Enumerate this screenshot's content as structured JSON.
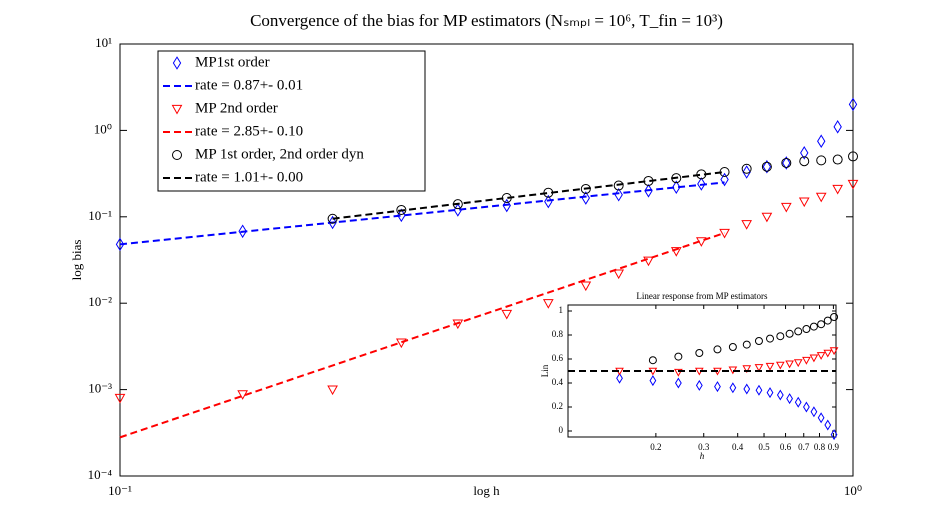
{
  "chart_data": [
    {
      "type": "line",
      "title": "Convergence of the bias for MP estimators (Nₛₘₚₗ = 10⁶, T_fin = 10³)",
      "xlabel": "log h",
      "ylabel": "log bias",
      "xlog": true,
      "ylog": true,
      "xlim": [
        0.1,
        1
      ],
      "ylim": [
        0.0001,
        10
      ],
      "xticks": [
        {
          "value": 0.1,
          "label": "10⁻¹"
        },
        {
          "value": 1,
          "label": "10⁰"
        }
      ],
      "yticks": [
        {
          "value": 0.0001,
          "label": "10⁻⁴"
        },
        {
          "value": 0.001,
          "label": "10⁻³"
        },
        {
          "value": 0.01,
          "label": "10⁻²"
        },
        {
          "value": 0.1,
          "label": "10⁻¹"
        },
        {
          "value": 1,
          "label": "10⁰"
        },
        {
          "value": 10,
          "label": "10¹"
        }
      ],
      "legend": "upper left",
      "x": [
        0.1,
        0.147,
        0.195,
        0.242,
        0.289,
        0.337,
        0.384,
        0.432,
        0.479,
        0.526,
        0.574,
        0.621,
        0.668,
        0.716,
        0.763,
        0.811,
        0.858,
        0.905,
        0.953,
        1.0
      ],
      "series": [
        {
          "name": "MP1st order",
          "color": "#0000ff",
          "marker": "diamond",
          "values": [
            0.048,
            0.068,
            0.086,
            0.104,
            0.12,
            0.135,
            0.15,
            0.165,
            0.18,
            0.2,
            0.22,
            0.24,
            0.27,
            0.33,
            0.38,
            0.42,
            0.55,
            0.75,
            1.1,
            2.0
          ]
        },
        {
          "name": "rate = 0.87+- 0.01",
          "color": "#0000ff",
          "dash": true,
          "x": [
            0.1,
            0.668
          ],
          "values": [
            0.048,
            0.25
          ]
        },
        {
          "name": "MP 2nd order",
          "color": "#ff0000",
          "marker": "triangle",
          "values": [
            0.0008,
            0.00088,
            0.001,
            0.0035,
            0.0058,
            0.0075,
            0.01,
            0.016,
            0.022,
            0.031,
            0.04,
            0.052,
            0.065,
            0.082,
            0.1,
            0.13,
            0.15,
            0.17,
            0.21,
            0.24
          ]
        },
        {
          "name": "rate = 2.85+- 0.10",
          "color": "#ff0000",
          "dash": true,
          "x": [
            0.1,
            0.668
          ],
          "values": [
            0.00028,
            0.065
          ]
        },
        {
          "name": "MP 1st order, 2nd order dyn",
          "color": "#000000",
          "marker": "circle",
          "values": [
            null,
            null,
            0.095,
            0.12,
            0.14,
            0.165,
            0.19,
            0.21,
            0.23,
            0.26,
            0.28,
            0.31,
            0.33,
            0.36,
            0.38,
            0.42,
            0.44,
            0.45,
            0.46,
            0.5
          ]
        },
        {
          "name": "rate = 1.01+- 0.00",
          "color": "#000000",
          "dash": true,
          "x": [
            0.195,
            0.668
          ],
          "values": [
            0.095,
            0.33
          ]
        }
      ]
    },
    {
      "type": "line",
      "title": "Linear response from MP estimators",
      "xlabel": "h",
      "ylabel": "Lin",
      "xlog": true,
      "ylog": false,
      "xlim": [
        0.095,
        0.92
      ],
      "ylim": [
        -0.05,
        1.05
      ],
      "xticks": [
        0.2,
        0.3,
        0.4,
        0.5,
        0.6,
        0.7,
        0.8,
        0.9
      ],
      "yticks": [
        0,
        0.2,
        0.4,
        0.6,
        0.8,
        1
      ],
      "x": [
        0.147,
        0.195,
        0.242,
        0.289,
        0.337,
        0.384,
        0.432,
        0.479,
        0.526,
        0.574,
        0.621,
        0.668,
        0.716,
        0.763,
        0.811,
        0.858,
        0.905
      ],
      "series": [
        {
          "color": "#0000ff",
          "marker": "diamond",
          "values": [
            0.44,
            0.42,
            0.4,
            0.38,
            0.37,
            0.36,
            0.35,
            0.34,
            0.32,
            0.3,
            0.27,
            0.24,
            0.2,
            0.16,
            0.11,
            0.05,
            -0.03
          ]
        },
        {
          "color": "#ff0000",
          "marker": "triangle",
          "values": [
            0.5,
            0.5,
            0.49,
            0.5,
            0.5,
            0.51,
            0.52,
            0.53,
            0.54,
            0.55,
            0.56,
            0.57,
            0.59,
            0.61,
            0.63,
            0.65,
            0.67
          ]
        },
        {
          "color": "#000000",
          "marker": "circle",
          "values": [
            null,
            0.59,
            0.62,
            0.65,
            0.68,
            0.7,
            0.72,
            0.75,
            0.77,
            0.79,
            0.81,
            0.83,
            0.85,
            0.87,
            0.89,
            0.92,
            0.95
          ]
        },
        {
          "color": "#000000",
          "dash": true,
          "x": [
            0.095,
            0.92
          ],
          "values": [
            0.5,
            0.5
          ]
        }
      ]
    }
  ]
}
